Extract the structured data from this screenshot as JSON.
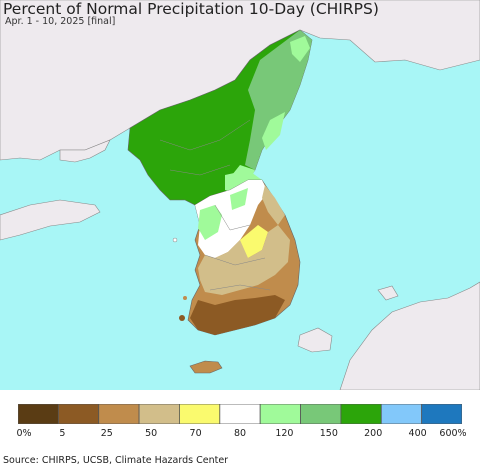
{
  "title": "Percent of Normal Precipitation 10-Day (CHIRPS)",
  "subtitle": "Apr. 1 - 10, 2025 [final]",
  "legend": {
    "labels": [
      "0%",
      "5",
      "25",
      "50",
      "70",
      "80",
      "120",
      "150",
      "200",
      "400",
      "600%"
    ],
    "colors": [
      "#5a3c14",
      "#8c5a24",
      "#c08c4c",
      "#d2be8a",
      "#fafa6e",
      "#ffffff",
      "#a0fa9a",
      "#78c878",
      "#2ca50a",
      "#82c8fa",
      "#1e78be"
    ]
  },
  "source": "Source: CHIRPS, UCSB, Climate Hazards Center",
  "colors": {
    "ocean": "#a8f6f6",
    "land_outside": "#eeeaee",
    "border": "#777777"
  }
}
